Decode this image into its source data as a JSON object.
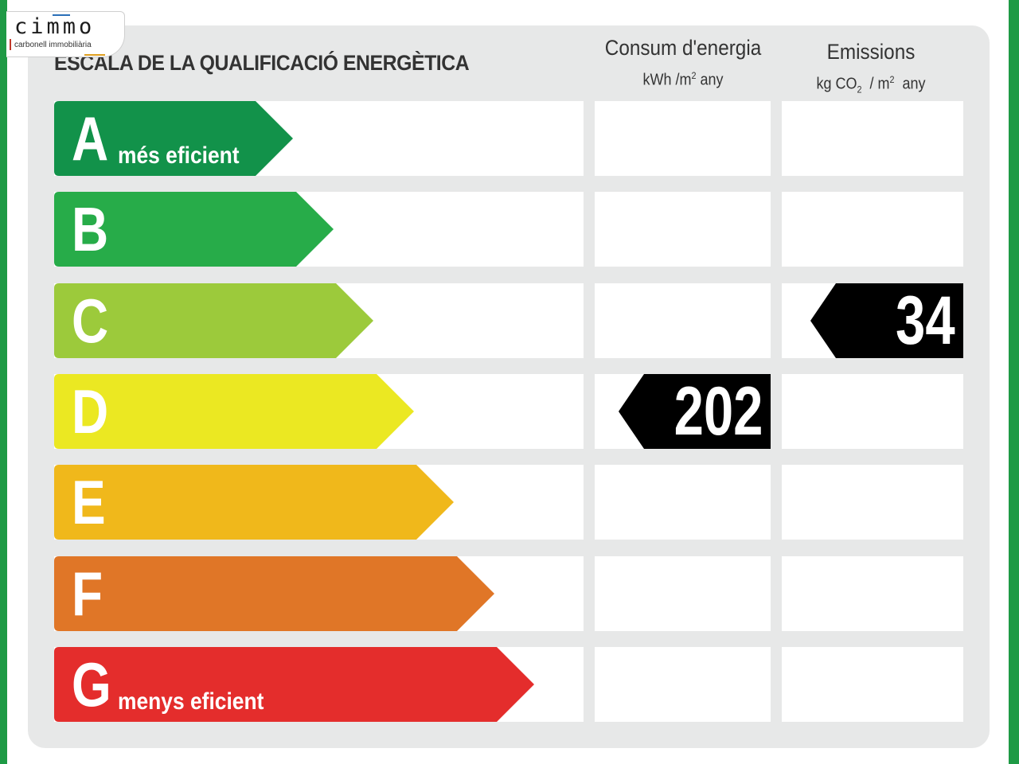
{
  "logo": {
    "word": "cimmo",
    "tagline": "carbonell immobiliària"
  },
  "title": "ESCALA DE LA QUALIFICACIÓ ENERGÈTICA",
  "columns": {
    "energy": {
      "title": "Consum d'energia",
      "unit_prefix": "kWh /m",
      "unit_exp": "2",
      "unit_suffix": " any"
    },
    "emissions": {
      "title": "Emissions",
      "unit_prefix": "kg CO",
      "unit_sub": "2",
      "unit_mid": "  / m",
      "unit_exp": "2",
      "unit_suffix": "  any"
    }
  },
  "classes": [
    {
      "letter": "A",
      "caption": "més eficient",
      "color": "#12924a"
    },
    {
      "letter": "B",
      "caption": "",
      "color": "#27ac49"
    },
    {
      "letter": "C",
      "caption": "",
      "color": "#9cca3b"
    },
    {
      "letter": "D",
      "caption": "",
      "color": "#ebe822"
    },
    {
      "letter": "E",
      "caption": "",
      "color": "#f0b81b"
    },
    {
      "letter": "F",
      "caption": "",
      "color": "#e07627"
    },
    {
      "letter": "G",
      "caption": "menys eficient",
      "color": "#e42d2c"
    }
  ],
  "ratings": {
    "energy": {
      "class": "D",
      "value": "202"
    },
    "emissions": {
      "class": "C",
      "value": "34"
    }
  },
  "colors": {
    "frame_green": "#1e9a45",
    "panel": "#e7e8e8",
    "marker": "#000000"
  }
}
